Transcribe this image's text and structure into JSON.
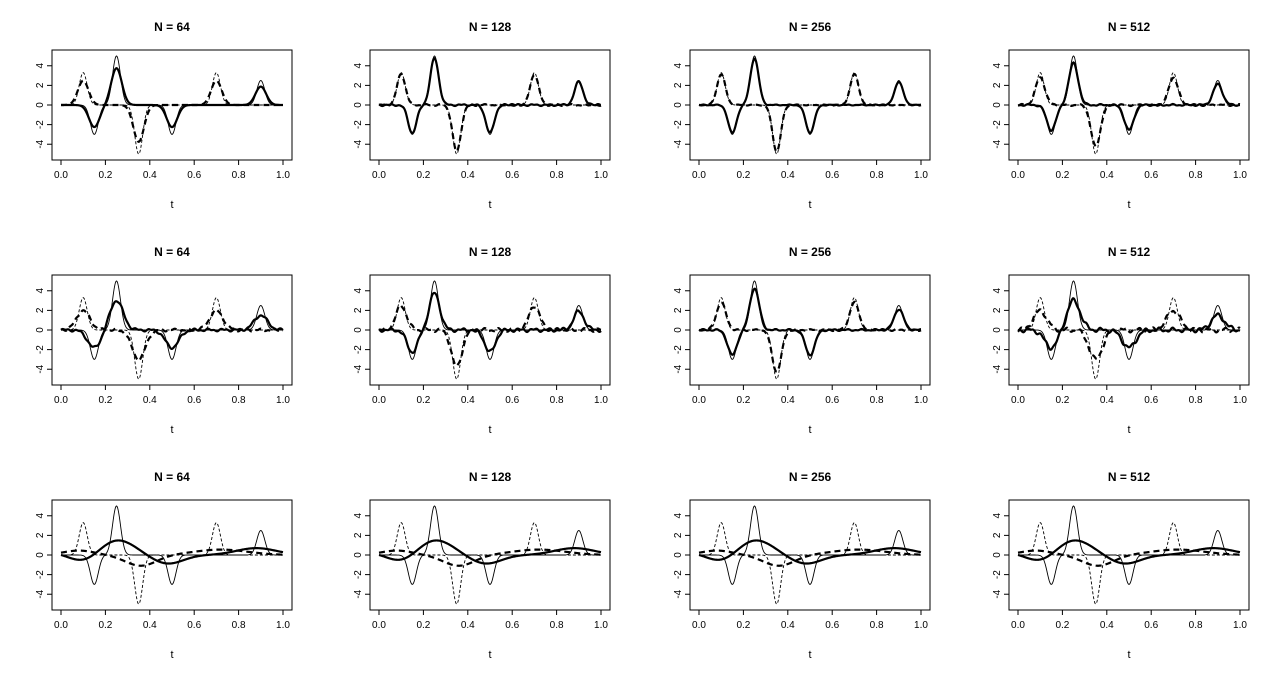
{
  "figure": {
    "layout": {
      "rows": 3,
      "cols": 4
    },
    "colors": {
      "background": "#ffffff",
      "ink": "#000000"
    }
  },
  "chart_data": [
    {
      "type": "line",
      "title": "N = 64",
      "xlabel": "t",
      "ylabel": "",
      "x_ticks": [
        "0.0",
        "0.2",
        "0.4",
        "0.6",
        "0.8",
        "1.0"
      ],
      "y_ticks": [
        "-4",
        "-2",
        "0",
        "2",
        "4"
      ],
      "xlim": [
        0,
        1
      ],
      "ylim": [
        -5.2,
        5.2
      ],
      "estimate_style": "localized",
      "smoothness": 0.75,
      "estimate_noise": 0.0
    },
    {
      "type": "line",
      "title": "N = 128",
      "xlabel": "t",
      "ylabel": "",
      "x_ticks": [
        "0.0",
        "0.2",
        "0.4",
        "0.6",
        "0.8",
        "1.0"
      ],
      "y_ticks": [
        "-4",
        "-2",
        "0",
        "2",
        "4"
      ],
      "xlim": [
        0,
        1
      ],
      "ylim": [
        -5.2,
        5.2
      ],
      "estimate_style": "localized",
      "smoothness": 0.95,
      "estimate_noise": 0.1
    },
    {
      "type": "line",
      "title": "N = 256",
      "xlabel": "t",
      "ylabel": "",
      "x_ticks": [
        "0.0",
        "0.2",
        "0.4",
        "0.6",
        "0.8",
        "1.0"
      ],
      "y_ticks": [
        "-4",
        "-2",
        "0",
        "2",
        "4"
      ],
      "xlim": [
        0,
        1
      ],
      "ylim": [
        -5.2,
        5.2
      ],
      "estimate_style": "localized",
      "smoothness": 0.95,
      "estimate_noise": 0.05
    },
    {
      "type": "line",
      "title": "N = 512",
      "xlabel": "t",
      "ylabel": "",
      "x_ticks": [
        "0.0",
        "0.2",
        "0.4",
        "0.6",
        "0.8",
        "1.0"
      ],
      "y_ticks": [
        "-4",
        "-2",
        "0",
        "2",
        "4"
      ],
      "xlim": [
        0,
        1
      ],
      "ylim": [
        -5.2,
        5.2
      ],
      "estimate_style": "localized",
      "smoothness": 0.85,
      "estimate_noise": 0.1
    },
    {
      "type": "line",
      "title": "N = 64",
      "xlabel": "t",
      "ylabel": "",
      "x_ticks": [
        "0.0",
        "0.2",
        "0.4",
        "0.6",
        "0.8",
        "1.0"
      ],
      "y_ticks": [
        "-4",
        "-2",
        "0",
        "2",
        "4"
      ],
      "xlim": [
        0,
        1
      ],
      "ylim": [
        -5.2,
        5.2
      ],
      "estimate_style": "localized",
      "smoothness": 0.6,
      "estimate_noise": 0.15
    },
    {
      "type": "line",
      "title": "N = 128",
      "xlabel": "t",
      "ylabel": "",
      "x_ticks": [
        "0.0",
        "0.2",
        "0.4",
        "0.6",
        "0.8",
        "1.0"
      ],
      "y_ticks": [
        "-4",
        "-2",
        "0",
        "2",
        "4"
      ],
      "xlim": [
        0,
        1
      ],
      "ylim": [
        -5.2,
        5.2
      ],
      "estimate_style": "localized",
      "smoothness": 0.75,
      "estimate_noise": 0.2
    },
    {
      "type": "line",
      "title": "N = 256",
      "xlabel": "t",
      "ylabel": "",
      "x_ticks": [
        "0.0",
        "0.2",
        "0.4",
        "0.6",
        "0.8",
        "1.0"
      ],
      "y_ticks": [
        "-4",
        "-2",
        "0",
        "2",
        "4"
      ],
      "xlim": [
        0,
        1
      ],
      "ylim": [
        -5.2,
        5.2
      ],
      "estimate_style": "localized",
      "smoothness": 0.85,
      "estimate_noise": 0.1
    },
    {
      "type": "line",
      "title": "N = 512",
      "xlabel": "t",
      "ylabel": "",
      "x_ticks": [
        "0.0",
        "0.2",
        "0.4",
        "0.6",
        "0.8",
        "1.0"
      ],
      "y_ticks": [
        "-4",
        "-2",
        "0",
        "2",
        "4"
      ],
      "xlim": [
        0,
        1
      ],
      "ylim": [
        -5.2,
        5.2
      ],
      "estimate_style": "localized",
      "smoothness": 0.6,
      "estimate_noise": 0.25
    },
    {
      "type": "line",
      "title": "N = 64",
      "xlabel": "t",
      "ylabel": "",
      "x_ticks": [
        "0.0",
        "0.2",
        "0.4",
        "0.6",
        "0.8",
        "1.0"
      ],
      "y_ticks": [
        "-4",
        "-2",
        "0",
        "2",
        "4"
      ],
      "xlim": [
        0,
        1
      ],
      "ylim": [
        -5.2,
        5.2
      ],
      "estimate_style": "smooth",
      "smoothness": 0.3,
      "estimate_noise": 0.0
    },
    {
      "type": "line",
      "title": "N = 128",
      "xlabel": "t",
      "ylabel": "",
      "x_ticks": [
        "0.0",
        "0.2",
        "0.4",
        "0.6",
        "0.8",
        "1.0"
      ],
      "y_ticks": [
        "-4",
        "-2",
        "0",
        "2",
        "4"
      ],
      "xlim": [
        0,
        1
      ],
      "ylim": [
        -5.2,
        5.2
      ],
      "estimate_style": "smooth",
      "smoothness": 0.3,
      "estimate_noise": 0.0
    },
    {
      "type": "line",
      "title": "N = 256",
      "xlabel": "t",
      "ylabel": "",
      "x_ticks": [
        "0.0",
        "0.2",
        "0.4",
        "0.6",
        "0.8",
        "1.0"
      ],
      "y_ticks": [
        "-4",
        "-2",
        "0",
        "2",
        "4"
      ],
      "xlim": [
        0,
        1
      ],
      "ylim": [
        -5.2,
        5.2
      ],
      "estimate_style": "smooth",
      "smoothness": 0.35,
      "estimate_noise": 0.0
    },
    {
      "type": "line",
      "title": "N = 512",
      "xlabel": "t",
      "ylabel": "",
      "x_ticks": [
        "0.0",
        "0.2",
        "0.4",
        "0.6",
        "0.8",
        "1.0"
      ],
      "y_ticks": [
        "-4",
        "-2",
        "0",
        "2",
        "4"
      ],
      "xlim": [
        0,
        1
      ],
      "ylim": [
        -5.2,
        5.2
      ],
      "estimate_style": "smooth",
      "smoothness": 0.35,
      "estimate_noise": 0.0
    }
  ],
  "true_functions": {
    "solid_thin": [
      {
        "center": 0.15,
        "height": -3.0
      },
      {
        "center": 0.25,
        "height": 5.0
      },
      {
        "center": 0.5,
        "height": -3.0
      },
      {
        "center": 0.9,
        "height": 2.5
      }
    ],
    "dashed_thin": [
      {
        "center": 0.1,
        "height": 3.3
      },
      {
        "center": 0.35,
        "height": -5.0
      },
      {
        "center": 0.7,
        "height": 3.3
      }
    ],
    "bump_width": 0.018
  }
}
